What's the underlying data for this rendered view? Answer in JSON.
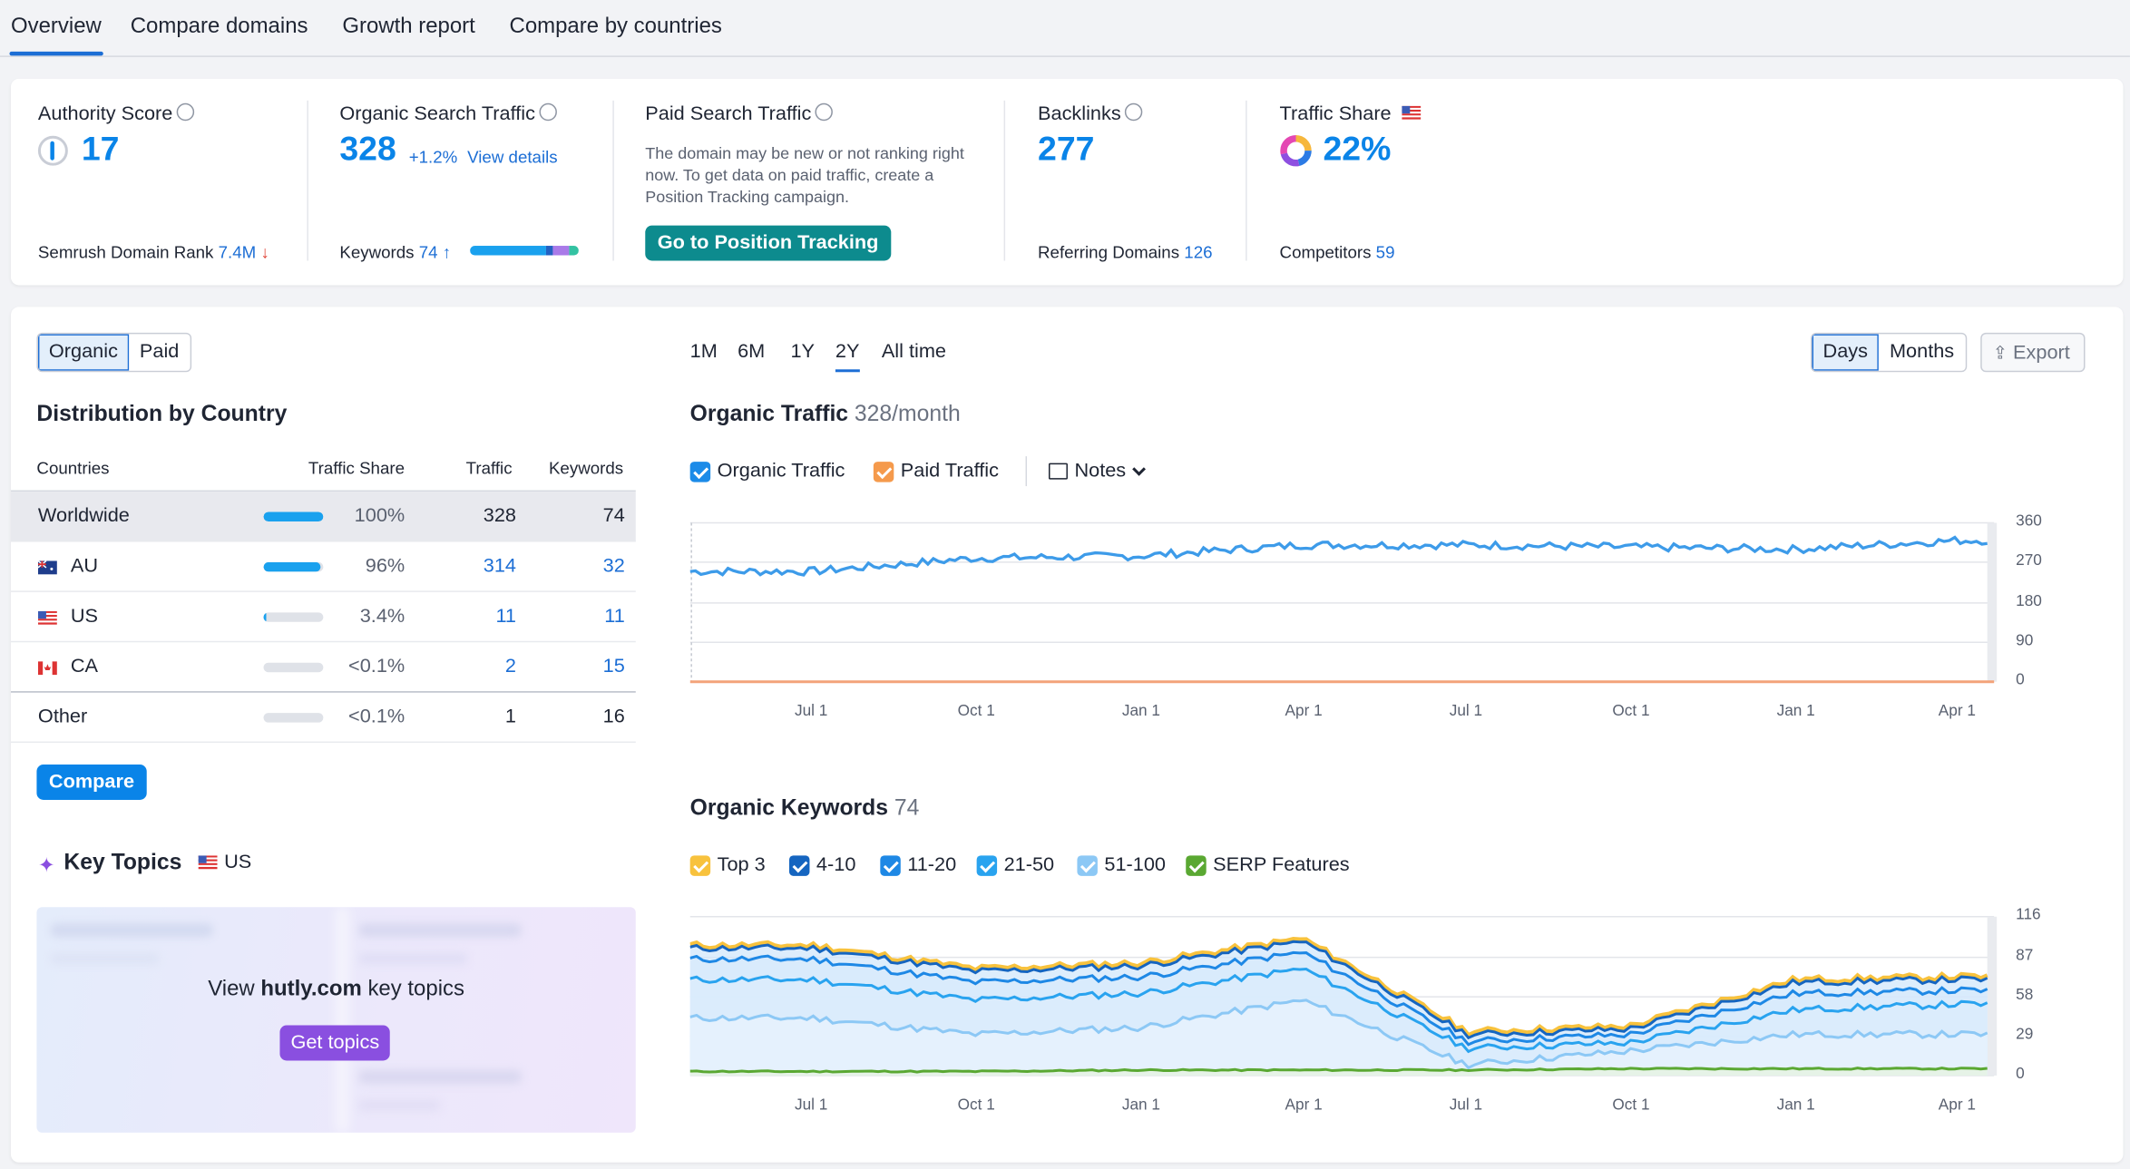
{
  "tabs": [
    "Overview",
    "Compare domains",
    "Growth report",
    "Compare by countries"
  ],
  "metrics": {
    "authority": {
      "label": "Authority Score",
      "value": "17",
      "rank_label": "Semrush Domain Rank",
      "rank_value": "7.4M"
    },
    "organic": {
      "label": "Organic Search Traffic",
      "value": "328",
      "change": "+1.2%",
      "link": "View details",
      "kw_label": "Keywords",
      "kw_value": "74"
    },
    "paid": {
      "label": "Paid Search Traffic",
      "note": "The domain may be new or not ranking right now. To get data on paid traffic, create a Position Tracking campaign.",
      "button": "Go to Position Tracking"
    },
    "backlinks": {
      "label": "Backlinks",
      "value": "277",
      "ref_label": "Referring Domains",
      "ref_value": "126"
    },
    "share": {
      "label": "Traffic Share",
      "value": "22%",
      "comp_label": "Competitors",
      "comp_value": "59"
    }
  },
  "toggle": {
    "organic": "Organic",
    "paid": "Paid"
  },
  "distribution": {
    "title": "Distribution by Country",
    "headers": [
      "Countries",
      "Traffic Share",
      "Traffic",
      "Keywords"
    ],
    "rows": [
      {
        "name": "Worldwide",
        "share": "100%",
        "fill": 1.0,
        "traffic": "328",
        "keywords": "74"
      },
      {
        "name": "AU",
        "share": "96%",
        "fill": 0.96,
        "traffic": "314",
        "keywords": "32"
      },
      {
        "name": "US",
        "share": "3.4%",
        "fill": 0.034,
        "traffic": "11",
        "keywords": "11"
      },
      {
        "name": "CA",
        "share": "<0.1%",
        "fill": 0.0,
        "traffic": "2",
        "keywords": "15"
      },
      {
        "name": "Other",
        "share": "<0.1%",
        "fill": 0.0,
        "traffic": "1",
        "keywords": "16"
      }
    ],
    "compare": "Compare"
  },
  "topics": {
    "title": "Key Topics",
    "country": "US",
    "view_prefix": "View",
    "domain": "hutly.com",
    "view_suffix": "key topics",
    "button": "Get topics"
  },
  "periods": [
    "1M",
    "6M",
    "1Y",
    "2Y",
    "All time"
  ],
  "view": {
    "days": "Days",
    "months": "Months",
    "export": "Export"
  },
  "traffic_chart": {
    "title": "Organic Traffic",
    "subtitle": "328/month",
    "legend": [
      "Organic Traffic",
      "Paid Traffic"
    ],
    "notes": "Notes",
    "y_ticks": [
      "360",
      "270",
      "180",
      "90",
      "0"
    ],
    "x_ticks": [
      "Jul 1",
      "Oct 1",
      "Jan 1",
      "Apr 1",
      "Jul 1",
      "Oct 1",
      "Jan 1",
      "Apr 1"
    ],
    "colors": {
      "organic": "#3d9be9",
      "paid": "#f3a37a"
    }
  },
  "keywords_chart": {
    "title": "Organic Keywords",
    "subtitle": "74",
    "legend": [
      "Top 3",
      "4-10",
      "11-20",
      "21-50",
      "51-100",
      "SERP Features"
    ],
    "colors": [
      "#f8c23d",
      "#1565c0",
      "#1e88e5",
      "#29a3ef",
      "#8cc8f5",
      "#5aa832"
    ],
    "y_ticks": [
      "116",
      "87",
      "58",
      "29",
      "0"
    ],
    "x_ticks": [
      "Jul 1",
      "Oct 1",
      "Jan 1",
      "Apr 1",
      "Jul 1",
      "Oct 1",
      "Jan 1",
      "Apr 1"
    ]
  },
  "chart_data": [
    {
      "type": "line",
      "title": "Organic Traffic",
      "ylim": [
        0,
        360
      ],
      "x": [
        "Jul 1",
        "Oct 1",
        "Jan 1",
        "Apr 1",
        "Jul 1",
        "Oct 1",
        "Jan 1",
        "Apr 1"
      ],
      "series": [
        {
          "name": "Organic Traffic",
          "values": [
            250,
            280,
            285,
            310,
            310,
            305,
            300,
            320
          ]
        },
        {
          "name": "Paid Traffic",
          "values": [
            0,
            0,
            0,
            0,
            0,
            0,
            0,
            0
          ]
        }
      ]
    },
    {
      "type": "area",
      "title": "Organic Keywords",
      "ylim": [
        0,
        116
      ],
      "x": [
        "Jul 1",
        "Oct 1",
        "Jan 1",
        "Apr 1",
        "Jul 1",
        "Oct 1",
        "Jan 1",
        "Apr 1"
      ],
      "series": [
        {
          "name": "Top 3",
          "values": [
            95,
            78,
            82,
            100,
            32,
            36,
            70,
            72
          ]
        },
        {
          "name": "4-10",
          "values": [
            93,
            76,
            80,
            98,
            30,
            34,
            68,
            70
          ]
        },
        {
          "name": "11-20",
          "values": [
            85,
            68,
            72,
            90,
            25,
            30,
            60,
            62
          ]
        },
        {
          "name": "21-50",
          "values": [
            70,
            55,
            60,
            78,
            20,
            24,
            48,
            52
          ]
        },
        {
          "name": "51-100",
          "values": [
            42,
            30,
            35,
            55,
            8,
            18,
            30,
            30
          ]
        },
        {
          "name": "SERP Features",
          "values": [
            3,
            3,
            4,
            4,
            4,
            5,
            5,
            5
          ]
        }
      ]
    }
  ]
}
